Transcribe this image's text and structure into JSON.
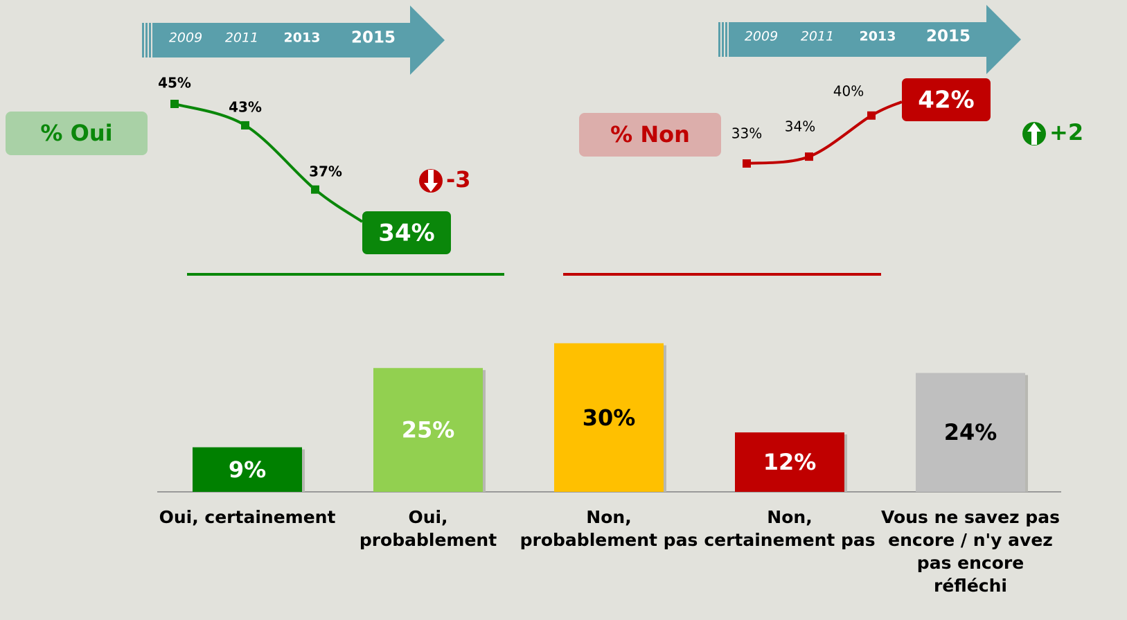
{
  "chart_data": [
    {
      "type": "line",
      "label": "% Oui",
      "x": [
        "2009",
        "2011",
        "2013",
        "2015"
      ],
      "values": [
        45,
        43,
        37,
        34
      ],
      "value_labels": [
        "45%",
        "43%",
        "37%",
        "34%"
      ],
      "color": "#0a870a",
      "label_background": "#a9d1a6",
      "change": -3,
      "change_color": "#c00000"
    },
    {
      "type": "line",
      "label": "% Non",
      "x": [
        "2009",
        "2011",
        "2013",
        "2015"
      ],
      "values": [
        33,
        34,
        40,
        42
      ],
      "value_labels": [
        "33%",
        "34%",
        "40%",
        "42%"
      ],
      "color": "#c00000",
      "label_background": "#dcaeab",
      "change": {
        "value": 2,
        "label": "+2"
      },
      "change_color": "#0a870a"
    },
    {
      "type": "bar",
      "categories": [
        "Oui, certainement",
        "Oui,\nprobablement",
        "Non,\nprobablement pas",
        "Non,\ncertainement pas",
        "Vous ne savez pas\nencore / n'y avez\npas encore\nréfléchi"
      ],
      "values": [
        9,
        25,
        30,
        12,
        24
      ],
      "value_labels": [
        "9%",
        "25%",
        "30%",
        "12%",
        "24%"
      ],
      "colors": [
        "#008000",
        "#92d050",
        "#ffc000",
        "#c00000",
        "#bfbfbf"
      ],
      "label_colors": [
        "#ffffff",
        "#ffffff",
        "#000000",
        "#ffffff",
        "#000000"
      ]
    }
  ]
}
